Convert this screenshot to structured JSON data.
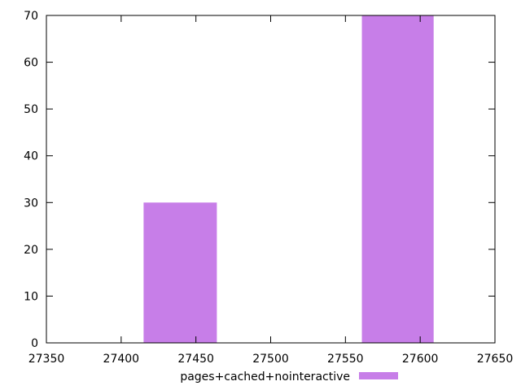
{
  "chart_data": {
    "type": "bar",
    "series": [
      {
        "name": "pages+cached+nointeractive",
        "color": "#c77ee8",
        "bars": [
          {
            "x_start": 27415,
            "x_end": 27464,
            "value": 30
          },
          {
            "x_start": 27561,
            "x_end": 27609,
            "value": 70
          }
        ]
      }
    ],
    "xlim": [
      27350,
      27650
    ],
    "ylim": [
      0,
      70
    ],
    "x_ticks": [
      27350,
      27400,
      27450,
      27500,
      27550,
      27600,
      27650
    ],
    "y_ticks": [
      0,
      10,
      20,
      30,
      40,
      50,
      60,
      70
    ],
    "xlabel": "",
    "ylabel": "",
    "title": "",
    "grid": false,
    "legend_position": "bottom-center"
  }
}
